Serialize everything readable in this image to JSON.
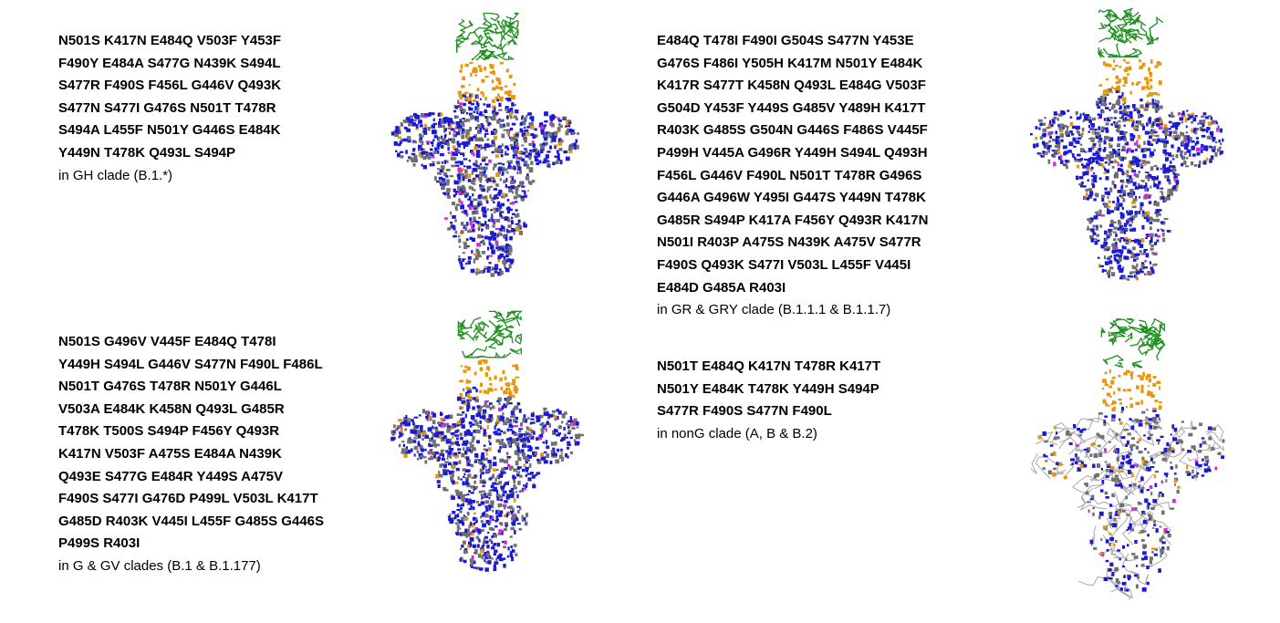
{
  "colors": {
    "receptor": "#1f8f1f",
    "mutation_site": "#e8960c",
    "spike_body": "#1a1ad6",
    "hotspot": "#e020e0",
    "backbone": "#707070",
    "trace": "#a8a8a8"
  },
  "panels": [
    {
      "mutation_lines": [
        "N501S K417N E484Q V503F Y453F",
        "F490Y E484A S477G N439K S494L",
        "S477R F490S F456L G446V Q493K",
        "S477N S477I G476S N501T T478R",
        "S494A L455F N501Y G446S E484K",
        "Y449N T478K Q493L S494P"
      ],
      "clade": "in GH clade (B.1.*)"
    },
    {
      "mutation_lines": [
        "E484Q T478I F490I G504S S477N Y453E",
        "G476S F486I Y505H K417M N501Y E484K",
        "K417R S477T K458N Q493L E484G V503F",
        "G504D Y453F Y449S G485V Y489H K417T",
        "R403K G485S G504N G446S F486S V445F",
        "P499H V445A G496R Y449H S494L Q493H",
        "F456L G446V F490L N501T T478R G496S",
        "G446A G496W Y495I G447S Y449N T478K",
        "G485R S494P K417A F456Y Q493R K417N",
        "N501I R403P A475S N439K A475V S477R",
        "F490S Q493K S477I V503L L455F V445I",
        "E484D G485A R403I"
      ],
      "clade": "in GR & GRY clade (B.1.1.1 & B.1.1.7)"
    },
    {
      "mutation_lines": [
        "N501S G496V V445F E484Q T478I",
        "Y449H S494L G446V S477N F490L F486L",
        "N501T G476S T478R N501Y G446L",
        "V503A E484K K458N Q493L G485R",
        "T478K T500S S494P F456Y Q493R",
        "K417N V503F A475S E484A N439K",
        "Q493E S477G E484R Y449S A475V",
        "F490S S477I G476D P499L V503L K417T",
        "G485D R403K V445I L455F G485S G446S",
        "P499S R403I"
      ],
      "clade": "in G & GV clades (B.1 & B.1.177)"
    },
    {
      "mutation_lines": [
        "N501T E484Q K417N T478R K417T",
        "N501Y E484K T478K Y449H S494P",
        "S477R F490S S477N F490L"
      ],
      "clade": "in nonG clade (A, B & B.2)"
    }
  ]
}
